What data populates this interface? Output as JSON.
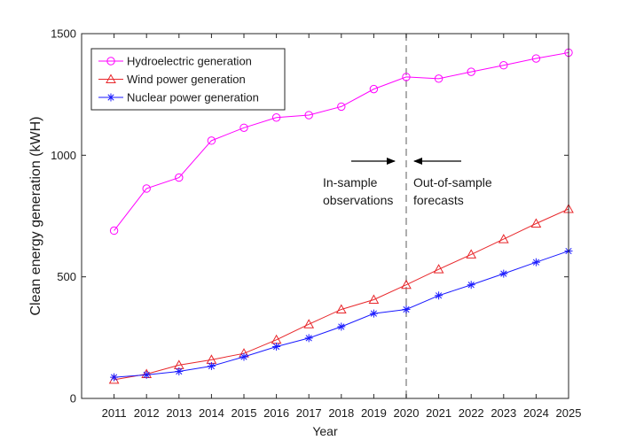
{
  "chart_data": {
    "type": "line",
    "title": "",
    "xlabel": "Year",
    "ylabel": "Clean energy generation (kWH)",
    "x": [
      2011,
      2012,
      2013,
      2014,
      2015,
      2016,
      2017,
      2018,
      2019,
      2020,
      2021,
      2022,
      2023,
      2024,
      2025
    ],
    "xlim": [
      2010,
      2025
    ],
    "ylim": [
      0,
      1500
    ],
    "yticks": [
      0,
      500,
      1000,
      1500
    ],
    "series": [
      {
        "name": "Hydroelectric generation",
        "color": "#ff00ff",
        "marker": "circle",
        "values": [
          690,
          863,
          908,
          1060,
          1113,
          1155,
          1165,
          1200,
          1272,
          1322,
          1315,
          1343,
          1370,
          1398,
          1422
        ]
      },
      {
        "name": "Wind power generation",
        "color": "#e8262a",
        "marker": "triangle",
        "values": [
          77,
          100,
          137,
          159,
          185,
          241,
          305,
          366,
          406,
          467,
          531,
          592,
          655,
          719,
          779
        ]
      },
      {
        "name": "Nuclear power generation",
        "color": "#1a1aff",
        "marker": "asterisk",
        "values": [
          87,
          97,
          111,
          133,
          171,
          213,
          248,
          295,
          349,
          366,
          423,
          467,
          513,
          560,
          606
        ]
      }
    ],
    "divider": {
      "x": 2020,
      "style": "dashed",
      "color": "#999999"
    },
    "annotations": {
      "left": [
        "In-sample",
        "observations"
      ],
      "right": [
        "Out-of-sample",
        "forecasts"
      ]
    },
    "legend": "top-left",
    "grid": false
  }
}
